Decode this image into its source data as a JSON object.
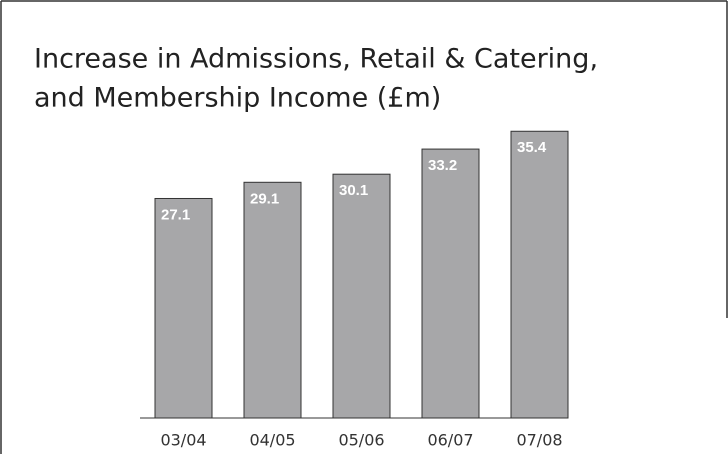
{
  "chart_data": {
    "type": "bar",
    "title_lines": [
      "Increase in Admissions, Retail & Catering,",
      "and Membership Income (£m)"
    ],
    "categories": [
      "03/04",
      "04/05",
      "05/06",
      "06/07",
      "07/08"
    ],
    "values": [
      27.1,
      29.1,
      30.1,
      33.2,
      35.4
    ],
    "color": "#a7a7a9"
  }
}
